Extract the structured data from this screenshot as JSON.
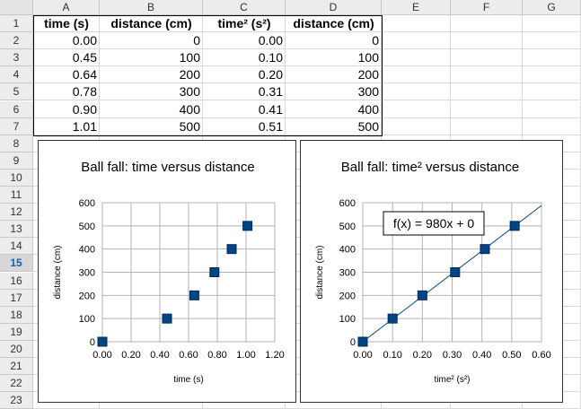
{
  "columns": [
    "A",
    "B",
    "C",
    "D",
    "E",
    "F",
    "G"
  ],
  "rows": [
    "1",
    "2",
    "3",
    "4",
    "5",
    "6",
    "7",
    "8",
    "9",
    "10",
    "11",
    "12",
    "13",
    "14",
    "15",
    "16",
    "17",
    "18",
    "19",
    "20",
    "21",
    "22",
    "23"
  ],
  "selected_row": "15",
  "table": {
    "headers": [
      "time (s)",
      "distance (cm)",
      "time² (s²)",
      "distance (cm)"
    ],
    "rows": [
      [
        "0.00",
        "0",
        "0.00",
        "0"
      ],
      [
        "0.45",
        "100",
        "0.10",
        "100"
      ],
      [
        "0.64",
        "200",
        "0.20",
        "200"
      ],
      [
        "0.78",
        "300",
        "0.31",
        "300"
      ],
      [
        "0.90",
        "400",
        "0.41",
        "400"
      ],
      [
        "1.01",
        "500",
        "0.51",
        "500"
      ]
    ]
  },
  "chart_data": [
    {
      "type": "scatter",
      "title": "Ball fall: time versus distance",
      "xlabel": "time (s)",
      "ylabel": "distance (cm)",
      "x": [
        0.0,
        0.45,
        0.64,
        0.78,
        0.9,
        1.01
      ],
      "y": [
        0,
        100,
        200,
        300,
        400,
        500
      ],
      "xlim": [
        0,
        1.2
      ],
      "ylim": [
        0,
        600
      ],
      "xticks": [
        "0.00",
        "0.20",
        "0.40",
        "0.60",
        "0.80",
        "1.00",
        "1.20"
      ],
      "yticks": [
        "0",
        "100",
        "200",
        "300",
        "400",
        "500",
        "600"
      ],
      "grid": true,
      "marker_color": "#004586"
    },
    {
      "type": "scatter",
      "title": "Ball fall: time² versus distance",
      "xlabel": "time² (s²)",
      "ylabel": "distance (cm)",
      "x": [
        0.0,
        0.1,
        0.2,
        0.31,
        0.41,
        0.51
      ],
      "y": [
        0,
        100,
        200,
        300,
        400,
        500
      ],
      "xlim": [
        0,
        0.6
      ],
      "ylim": [
        0,
        600
      ],
      "xticks": [
        "0.00",
        "0.10",
        "0.20",
        "0.30",
        "0.40",
        "0.50",
        "0.60"
      ],
      "yticks": [
        "0",
        "100",
        "200",
        "300",
        "400",
        "500",
        "600"
      ],
      "grid": true,
      "trendline": {
        "slope": 980,
        "intercept": 0,
        "equation": "f(x) = 980x + 0"
      },
      "marker_color": "#004586"
    }
  ]
}
